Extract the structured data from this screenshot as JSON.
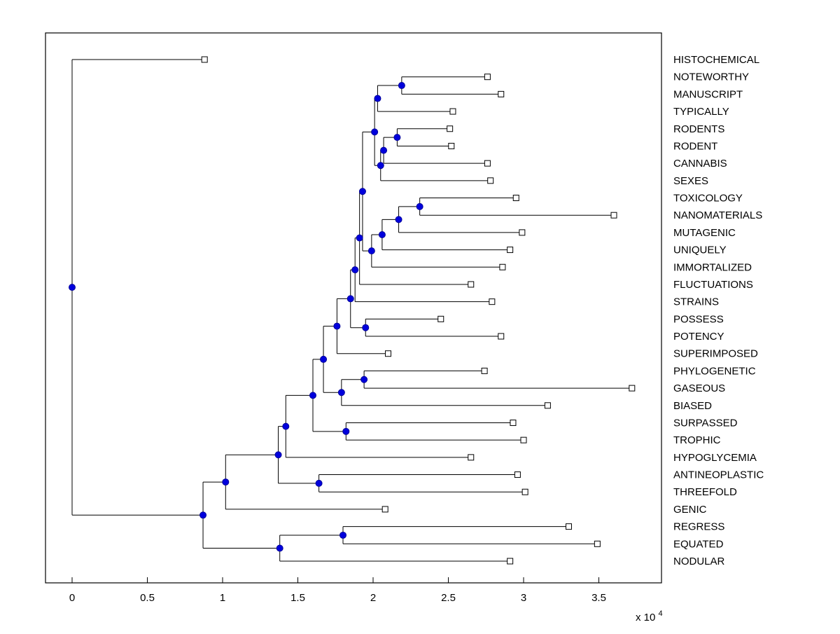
{
  "figure": {
    "background": "#ffffff"
  },
  "chart_data": {
    "type": "dendrogram",
    "title": "",
    "orientation": "left-to-right",
    "x_axis": {
      "ticks": [
        0,
        0.5,
        1,
        1.5,
        2,
        2.5,
        3,
        3.5
      ],
      "tick_labels": [
        "0",
        "0.5",
        "1",
        "1.5",
        "2",
        "2.5",
        "3",
        "3.5"
      ],
      "multiplier_label": "x 10",
      "multiplier_exponent": "4",
      "range": [
        -0.18,
        3.92
      ]
    },
    "styles": {
      "line_color": "#000000",
      "axis_color": "#000000",
      "internal_node_color": "#0000dd",
      "internal_node_edge": "#000099",
      "leaf_marker_fill": "#ffffff",
      "leaf_marker_edge": "#000000",
      "label_color": "#000000"
    },
    "leaves": [
      {
        "label": "HISTOCHEMICAL",
        "x": 0.88
      },
      {
        "label": "NOTEWORTHY",
        "x": 2.76
      },
      {
        "label": "MANUSCRIPT",
        "x": 2.85
      },
      {
        "label": "TYPICALLY",
        "x": 2.53
      },
      {
        "label": "RODENTS",
        "x": 2.51
      },
      {
        "label": "RODENT",
        "x": 2.52
      },
      {
        "label": "CANNABIS",
        "x": 2.76
      },
      {
        "label": "SEXES",
        "x": 2.78
      },
      {
        "label": "TOXICOLOGY",
        "x": 2.95
      },
      {
        "label": "NANOMATERIALS",
        "x": 3.6
      },
      {
        "label": "MUTAGENIC",
        "x": 2.99
      },
      {
        "label": "UNIQUELY",
        "x": 2.91
      },
      {
        "label": "IMMORTALIZED",
        "x": 2.86
      },
      {
        "label": "FLUCTUATIONS",
        "x": 2.65
      },
      {
        "label": "STRAINS",
        "x": 2.79
      },
      {
        "label": "POSSESS",
        "x": 2.45
      },
      {
        "label": "POTENCY",
        "x": 2.85
      },
      {
        "label": "SUPERIMPOSED",
        "x": 2.1
      },
      {
        "label": "PHYLOGENETIC",
        "x": 2.74
      },
      {
        "label": "GASEOUS",
        "x": 3.72
      },
      {
        "label": "BIASED",
        "x": 3.16
      },
      {
        "label": "SURPASSED",
        "x": 2.93
      },
      {
        "label": "TROPHIC",
        "x": 3.0
      },
      {
        "label": "HYPOGLYCEMIA",
        "x": 2.65
      },
      {
        "label": "ANTINEOPLASTIC",
        "x": 2.96
      },
      {
        "label": "THREEFOLD",
        "x": 3.01
      },
      {
        "label": "GENIC",
        "x": 2.08
      },
      {
        "label": "REGRESS",
        "x": 3.3
      },
      {
        "label": "EQUATED",
        "x": 3.49
      },
      {
        "label": "NODULAR",
        "x": 2.91
      }
    ],
    "tree": {
      "x": 0,
      "children": [
        {
          "leaf": "HISTOCHEMICAL",
          "x": 0.88
        },
        {
          "x": 0.87,
          "children": [
            {
              "x": 1.02,
              "children": [
                {
                  "x": 1.37,
                  "children": [
                    {
                      "x": 1.42,
                      "children": [
                        {
                          "x": 1.6,
                          "children": [
                            {
                              "x": 1.67,
                              "children": [
                                {
                                  "x": 1.76,
                                  "children": [
                                    {
                                      "x": 1.85,
                                      "children": [
                                        {
                                          "x": 1.88,
                                          "children": [
                                            {
                                              "x": 1.91,
                                              "children": [
                                                {
                                                  "x": 1.93,
                                                  "children": [
                                                    {
                                                      "x": 2.01,
                                                      "children": [
                                                        {
                                                          "x": 2.03,
                                                          "children": [
                                                            {
                                                              "x": 2.19,
                                                              "children": [
                                                                {
                                                                  "leaf": "NOTEWORTHY",
                                                                  "x": 2.76
                                                                },
                                                                {
                                                                  "leaf": "MANUSCRIPT",
                                                                  "x": 2.85
                                                                }
                                                              ]
                                                            },
                                                            {
                                                              "leaf": "TYPICALLY",
                                                              "x": 2.53
                                                            }
                                                          ]
                                                        },
                                                        {
                                                          "x": 2.05,
                                                          "children": [
                                                            {
                                                              "x": 2.07,
                                                              "children": [
                                                                {
                                                                  "x": 2.16,
                                                                  "children": [
                                                                    {
                                                                      "leaf": "RODENTS",
                                                                      "x": 2.51
                                                                    },
                                                                    {
                                                                      "leaf": "RODENT",
                                                                      "x": 2.52
                                                                    }
                                                                  ]
                                                                },
                                                                {
                                                                  "leaf": "CANNABIS",
                                                                  "x": 2.76
                                                                }
                                                              ]
                                                            },
                                                            {
                                                              "leaf": "SEXES",
                                                              "x": 2.78
                                                            }
                                                          ]
                                                        }
                                                      ]
                                                    },
                                                    {
                                                      "x": 1.99,
                                                      "children": [
                                                        {
                                                          "x": 2.06,
                                                          "children": [
                                                            {
                                                              "x": 2.17,
                                                              "children": [
                                                                {
                                                                  "x": 2.31,
                                                                  "children": [
                                                                    {
                                                                      "leaf": "TOXICOLOGY",
                                                                      "x": 2.95
                                                                    },
                                                                    {
                                                                      "leaf": "NANOMATERIALS",
                                                                      "x": 3.6
                                                                    }
                                                                  ]
                                                                },
                                                                {
                                                                  "leaf": "MUTAGENIC",
                                                                  "x": 2.99
                                                                }
                                                              ]
                                                            },
                                                            {
                                                              "leaf": "UNIQUELY",
                                                              "x": 2.91
                                                            }
                                                          ]
                                                        },
                                                        {
                                                          "leaf": "IMMORTALIZED",
                                                          "x": 2.86
                                                        }
                                                      ]
                                                    }
                                                  ]
                                                },
                                                {
                                                  "leaf": "FLUCTUATIONS",
                                                  "x": 2.65
                                                }
                                              ]
                                            },
                                            {
                                              "leaf": "STRAINS",
                                              "x": 2.79
                                            }
                                          ]
                                        },
                                        {
                                          "x": 1.95,
                                          "children": [
                                            {
                                              "leaf": "POSSESS",
                                              "x": 2.45
                                            },
                                            {
                                              "leaf": "POTENCY",
                                              "x": 2.85
                                            }
                                          ]
                                        }
                                      ]
                                    },
                                    {
                                      "leaf": "SUPERIMPOSED",
                                      "x": 2.1
                                    }
                                  ]
                                },
                                {
                                  "x": 1.79,
                                  "children": [
                                    {
                                      "x": 1.94,
                                      "children": [
                                        {
                                          "leaf": "PHYLOGENETIC",
                                          "x": 2.74
                                        },
                                        {
                                          "leaf": "GASEOUS",
                                          "x": 3.72
                                        }
                                      ]
                                    },
                                    {
                                      "leaf": "BIASED",
                                      "x": 3.16
                                    }
                                  ]
                                }
                              ]
                            },
                            {
                              "x": 1.82,
                              "children": [
                                {
                                  "leaf": "SURPASSED",
                                  "x": 2.93
                                },
                                {
                                  "leaf": "TROPHIC",
                                  "x": 3.0
                                }
                              ]
                            }
                          ]
                        },
                        {
                          "leaf": "HYPOGLYCEMIA",
                          "x": 2.65
                        }
                      ]
                    },
                    {
                      "x": 1.64,
                      "children": [
                        {
                          "leaf": "ANTINEOPLASTIC",
                          "x": 2.96
                        },
                        {
                          "leaf": "THREEFOLD",
                          "x": 3.01
                        }
                      ]
                    }
                  ]
                },
                {
                  "leaf": "GENIC",
                  "x": 2.08
                }
              ]
            },
            {
              "x": 1.38,
              "children": [
                {
                  "x": 1.8,
                  "children": [
                    {
                      "leaf": "REGRESS",
                      "x": 3.3
                    },
                    {
                      "leaf": "EQUATED",
                      "x": 3.49
                    }
                  ]
                },
                {
                  "leaf": "NODULAR",
                  "x": 2.91
                }
              ]
            }
          ]
        }
      ]
    }
  }
}
